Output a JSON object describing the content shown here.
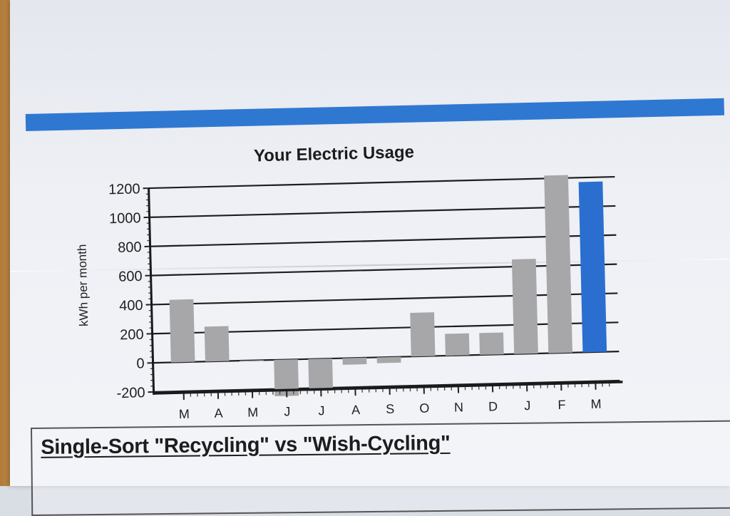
{
  "chart_data": {
    "type": "bar",
    "title": "Your Electric Usage",
    "ylabel": "kWh per month",
    "xlabel": "",
    "categories": [
      "M",
      "A",
      "M",
      "J",
      "J",
      "A",
      "S",
      "O",
      "N",
      "D",
      "J",
      "F",
      "M"
    ],
    "values": [
      430,
      240,
      0,
      -250,
      -220,
      -45,
      -40,
      300,
      150,
      150,
      650,
      1220,
      1170
    ],
    "ylim": [
      -200,
      1200
    ],
    "yticks": [
      "1200",
      "1000",
      "800",
      "600",
      "400",
      "200",
      "0",
      "-200"
    ],
    "grid": true,
    "colors": {
      "bar": "#a7a7aa",
      "current_bar": "#2a6fd0",
      "grid": "#1e1e1e"
    },
    "highlighted_index": 12
  },
  "article": {
    "heading": "Single-Sort \"Recycling\" vs \"Wish-Cycling\""
  },
  "colors": {
    "accent_rule": "#2f78d1"
  }
}
